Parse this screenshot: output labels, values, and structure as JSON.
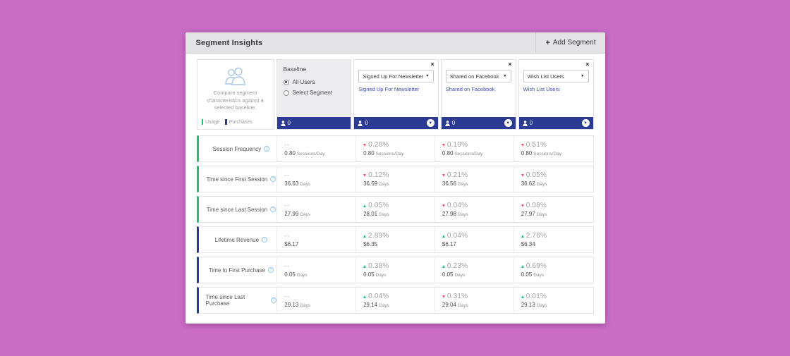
{
  "header": {
    "title": "Segment Insights",
    "add_label": "Add Segment",
    "plus": "+"
  },
  "icons": {
    "close": "×",
    "caret_down": "▼",
    "collapse_chevron": "▼",
    "info": "?",
    "person": "person-silhouette"
  },
  "colors": {
    "page_bg": "#ca6cc5",
    "header_bg": "#e3e3e6",
    "footer_indigo": "#2b3a92",
    "usage_green": "#21bf73",
    "purchases_blue": "#2b3a92",
    "delta_up": "#21bf73",
    "delta_down": "#f4596b",
    "link_blue": "#3b4db0"
  },
  "compare_card": {
    "description": "Compare segment characteristics against a selected baseline.",
    "legend": [
      {
        "label": "Usage",
        "color": "#21bf73"
      },
      {
        "label": "Purchases",
        "color": "#2b3a92"
      }
    ]
  },
  "baseline_card": {
    "title": "Baseline",
    "options": [
      {
        "label": "All Users",
        "selected": true
      },
      {
        "label": "Select Segment",
        "selected": false
      }
    ],
    "user_count": "0"
  },
  "segment_cards": [
    {
      "selected_option": "Signed Up For Newsletter",
      "link": "Signed Up For Newsletter",
      "user_count": "0"
    },
    {
      "selected_option": "Shared on Facebook",
      "link": "Shared on Facebook",
      "user_count": "0"
    },
    {
      "selected_option": "Wish List Users",
      "link": "Wish List Users",
      "user_count": "0"
    }
  ],
  "metrics": [
    {
      "label": "Session Frequency",
      "category": "usage",
      "baseline": {
        "delta": "--",
        "value": "0.80",
        "unit": "Sessions/Day"
      },
      "cells": [
        {
          "dir": "down",
          "delta": "0.28%",
          "value": "0.80",
          "unit": "Sessions/Day"
        },
        {
          "dir": "down",
          "delta": "0.19%",
          "value": "0.80",
          "unit": "Sessions/Day"
        },
        {
          "dir": "down",
          "delta": "0.51%",
          "value": "0.80",
          "unit": "Sessions/Day"
        }
      ]
    },
    {
      "label": "Time since First Session",
      "category": "usage",
      "baseline": {
        "delta": "--",
        "value": "36.63",
        "unit": "Days"
      },
      "cells": [
        {
          "dir": "down",
          "delta": "0.12%",
          "value": "36.59",
          "unit": "Days"
        },
        {
          "dir": "down",
          "delta": "0.21%",
          "value": "36.56",
          "unit": "Days"
        },
        {
          "dir": "down",
          "delta": "0.05%",
          "value": "36.62",
          "unit": "Days"
        }
      ]
    },
    {
      "label": "Time since Last Session",
      "category": "usage",
      "baseline": {
        "delta": "--",
        "value": "27.99",
        "unit": "Days"
      },
      "cells": [
        {
          "dir": "up",
          "delta": "0.05%",
          "value": "28.01",
          "unit": "Days"
        },
        {
          "dir": "down",
          "delta": "0.04%",
          "value": "27.98",
          "unit": "Days"
        },
        {
          "dir": "down",
          "delta": "0.08%",
          "value": "27.97",
          "unit": "Days"
        }
      ]
    },
    {
      "label": "Lifetime Revenue",
      "category": "purchases",
      "baseline": {
        "delta": "--",
        "value": "$6.17",
        "unit": ""
      },
      "cells": [
        {
          "dir": "up",
          "delta": "2.89%",
          "value": "$6.35",
          "unit": ""
        },
        {
          "dir": "up",
          "delta": "0.04%",
          "value": "$6.17",
          "unit": ""
        },
        {
          "dir": "up",
          "delta": "2.76%",
          "value": "$6.34",
          "unit": ""
        }
      ]
    },
    {
      "label": "Time to First Purchase",
      "category": "purchases",
      "baseline": {
        "delta": "--",
        "value": "0.05",
        "unit": "Days"
      },
      "cells": [
        {
          "dir": "up",
          "delta": "0.38%",
          "value": "0.05",
          "unit": "Days"
        },
        {
          "dir": "up",
          "delta": "0.23%",
          "value": "0.05",
          "unit": "Days"
        },
        {
          "dir": "up",
          "delta": "0.69%",
          "value": "0.05",
          "unit": "Days"
        }
      ]
    },
    {
      "label": "Time since Last Purchase",
      "category": "purchases",
      "baseline": {
        "delta": "--",
        "value": "29.13",
        "unit": "Days"
      },
      "cells": [
        {
          "dir": "up",
          "delta": "0.04%",
          "value": "29.14",
          "unit": "Days"
        },
        {
          "dir": "down",
          "delta": "0.31%",
          "value": "29.04",
          "unit": "Days"
        },
        {
          "dir": "up",
          "delta": "0.01%",
          "value": "29.13",
          "unit": "Days"
        }
      ]
    }
  ]
}
